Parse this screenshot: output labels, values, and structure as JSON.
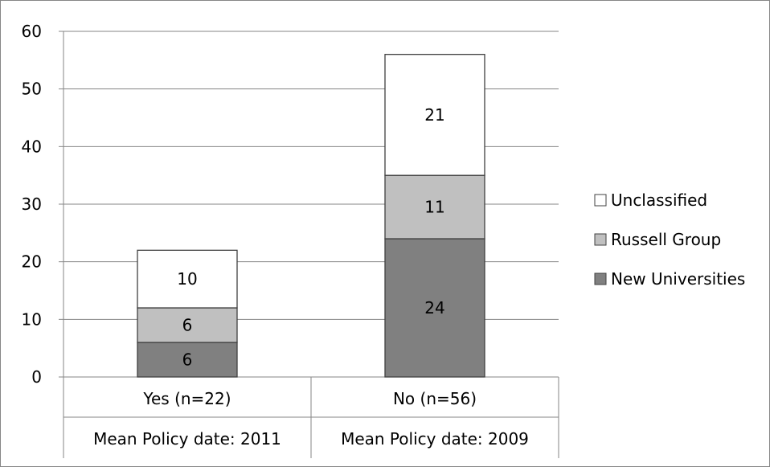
{
  "chart_data": {
    "type": "bar",
    "stacked": true,
    "categories": [
      "Yes (n=22)",
      "No (n=56)"
    ],
    "sub_categories": [
      "Mean Policy date: 2011",
      "Mean Policy date: 2009"
    ],
    "series": [
      {
        "name": "New Universities",
        "values": [
          6,
          24
        ],
        "color": "#808080"
      },
      {
        "name": "Russell Group",
        "values": [
          6,
          11
        ],
        "color": "#c0c0c0"
      },
      {
        "name": "Unclassified",
        "values": [
          10,
          21
        ],
        "color": "#ffffff"
      }
    ],
    "ylim": [
      0,
      60
    ],
    "yticks": [
      0,
      10,
      20,
      30,
      40,
      50,
      60
    ],
    "grid": true,
    "legend_position": "right",
    "legend_order": [
      "Unclassified",
      "Russell Group",
      "New Universities"
    ],
    "title": "",
    "xlabel": "",
    "ylabel": ""
  }
}
